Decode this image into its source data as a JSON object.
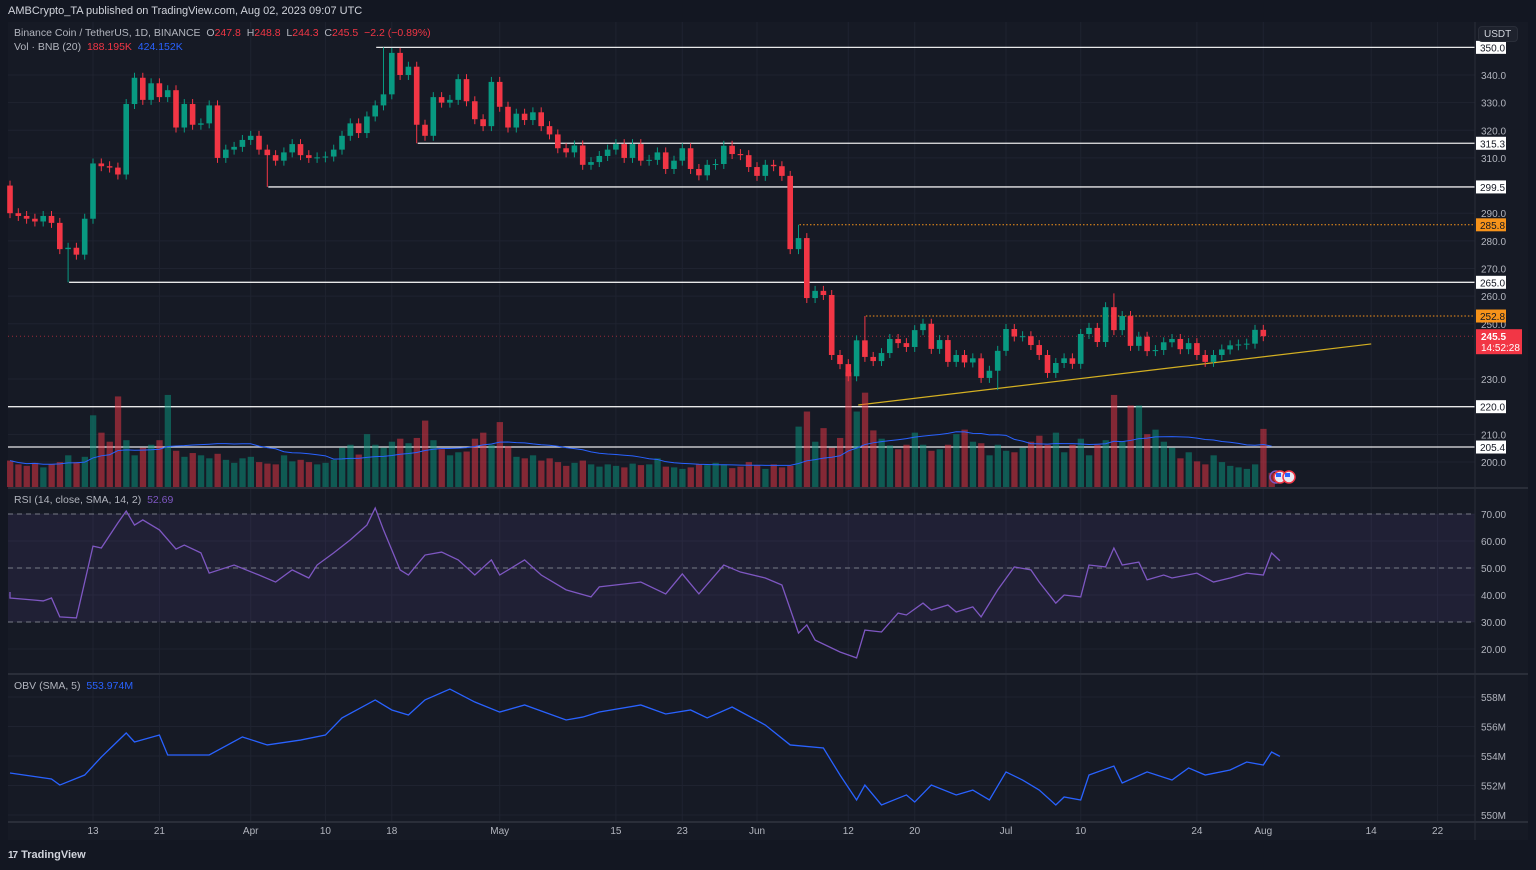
{
  "header": {
    "published": "AMBCrypto_TA published on TradingView.com, Aug 02, 2023 09:07 UTC",
    "symbol": "Binance Coin / TetherUS, 1D, BINANCE",
    "o_label": "O",
    "o": "247.8",
    "h_label": "H",
    "h": "248.8",
    "l_label": "L",
    "l": "244.3",
    "c_label": "C",
    "c": "245.5",
    "change": "−2.2 (−0.89%)",
    "vol_label": "Vol · BNB (20)",
    "vol": "188.195K",
    "vol_ma": "424.152K",
    "rsi_label": "RSI (14, close, SMA, 14, 2)",
    "rsi_value": "52.69",
    "obv_label": "OBV (SMA, 5)",
    "obv_value": "553.974M",
    "currency": "USDT"
  },
  "footer": {
    "brand": "TradingView",
    "brand_mark": "17"
  },
  "colors": {
    "up": "#089981",
    "down": "#f23645",
    "trend": "#d4b022",
    "orange": "#f7931a",
    "rsi": "#7e57c2",
    "obv": "#2962ff",
    "vol_ma": "#2962ff"
  },
  "chart_data": [
    {
      "type": "candlestick",
      "title": "Binance Coin / TetherUS, 1D, BINANCE",
      "first_day": "Mar 3 2023",
      "open0": 300,
      "closes": [
        290,
        289,
        288,
        287,
        289,
        286.5,
        277,
        277.5,
        275,
        288,
        308,
        307,
        306.5,
        304,
        329.5,
        339,
        331,
        337,
        332,
        334.5,
        321,
        329.5,
        322,
        322.5,
        329,
        310,
        313,
        314,
        316.5,
        318,
        313,
        311,
        309,
        312,
        315,
        311,
        310,
        310.2,
        310.5,
        313,
        318,
        322.5,
        319,
        325,
        329,
        333,
        348,
        340,
        343,
        322,
        318,
        332,
        330,
        331,
        338.5,
        330.5,
        324,
        321.5,
        337.5,
        328.5,
        321,
        326,
        323.7,
        326.5,
        321.5,
        318.5,
        313.5,
        312,
        314.5,
        307.5,
        308.5,
        310.7,
        313,
        315,
        310,
        315,
        309,
        309.3,
        312,
        306,
        309,
        313.5,
        306,
        303.7,
        307.5,
        307.8,
        314.4,
        311.4,
        311,
        306.7,
        303.5,
        307.5,
        307,
        303.5,
        277,
        281,
        259.3,
        261.9,
        260.4,
        238.7,
        235.4,
        231,
        244,
        238,
        236.5,
        239.4,
        244.5,
        243,
        241.6,
        247.7,
        250,
        240.9,
        244.1,
        236.2,
        238.7,
        236,
        237.5,
        230.4,
        233,
        240.2,
        248.1,
        245.4,
        245.5,
        242.3,
        238.7,
        232.2,
        235.8,
        237.5,
        235.5,
        246.3,
        248.5,
        243.4,
        256,
        247.7,
        252.8,
        242,
        245.3,
        240.1,
        240.5,
        243.3,
        244.5,
        240.8,
        243,
        238.7,
        236.2,
        238.7,
        240.7,
        242.2,
        242.5,
        242.8,
        247.8,
        245.5
      ],
      "wick_extremes": {
        "7": {
          "low": 265
        },
        "45": {
          "high": 350
        },
        "31": {
          "low": 299.5
        },
        "49": {
          "low": 315.3
        },
        "95": {
          "high": 285.8
        },
        "103": {
          "high": 252.8
        },
        "133": {
          "high": 261
        },
        "119": {
          "low": 226
        },
        "152": {
          "high": 248.8,
          "low": 244.3
        }
      },
      "volume_k": [
        350,
        300,
        280,
        320,
        260,
        300,
        330,
        420,
        330,
        400,
        950,
        720,
        600,
        1200,
        620,
        420,
        520,
        560,
        620,
        1220,
        480,
        400,
        450,
        420,
        380,
        440,
        360,
        320,
        380,
        400,
        330,
        310,
        300,
        420,
        340,
        360,
        330,
        300,
        320,
        360,
        520,
        560,
        430,
        700,
        560,
        520,
        600,
        640,
        580,
        650,
        880,
        620,
        500,
        420,
        460,
        470,
        640,
        720,
        560,
        860,
        540,
        400,
        380,
        420,
        350,
        380,
        330,
        280,
        320,
        350,
        300,
        270,
        300,
        280,
        260,
        310,
        290,
        300,
        380,
        270,
        260,
        240,
        260,
        300,
        290,
        320,
        300,
        250,
        270,
        330,
        290,
        240,
        300,
        260,
        280,
        800,
        1000,
        600,
        780,
        520,
        650,
        1520,
        1000,
        1250,
        750,
        640,
        550,
        500,
        560,
        720,
        560,
        480,
        500,
        560,
        700,
        760,
        600,
        580,
        420,
        560,
        480,
        460,
        520,
        600,
        680,
        560,
        720,
        460,
        560,
        640,
        420,
        560,
        620,
        1220,
        600,
        1080,
        1080,
        700,
        760,
        600,
        520,
        380,
        460,
        340,
        300,
        420,
        330,
        280,
        260,
        240,
        300,
        770,
        188.195
      ],
      "levels": [
        {
          "price": 350.0,
          "label": "350.0",
          "from_day": 44,
          "style": "solid",
          "color": "#ffffff"
        },
        {
          "price": 315.3,
          "label": "315.3",
          "from_day": 49,
          "style": "solid",
          "color": "#ffffff"
        },
        {
          "price": 299.5,
          "label": "299.5",
          "from_day": 31,
          "style": "solid",
          "color": "#ffffff"
        },
        {
          "price": 285.8,
          "label": "285.8",
          "from_day": 95,
          "style": "dotted",
          "color": "#f7931a"
        },
        {
          "price": 265.0,
          "label": "265.0",
          "from_day": 7,
          "style": "solid",
          "color": "#ffffff"
        },
        {
          "price": 252.8,
          "label": "252.8",
          "from_day": 103,
          "style": "dotted",
          "color": "#f7931a"
        },
        {
          "price": 220.0,
          "label": "220.0",
          "from_day": 0,
          "style": "solid",
          "color": "#ffffff"
        },
        {
          "price": 205.4,
          "label": "205.4",
          "from_day": 0,
          "style": "solid",
          "color": "#ffffff"
        }
      ],
      "trendline": {
        "from": [
          102.2,
          220.6
        ],
        "to": [
          164,
          242.7
        ]
      },
      "last_price": {
        "price": 245.5,
        "label": "245.5",
        "countdown": "14:52:28"
      },
      "y_ticks": [
        340,
        330,
        320,
        310,
        290,
        280,
        270,
        260,
        250,
        230,
        210,
        200
      ],
      "y_tick_labels": [
        "340.0",
        "330.0",
        "320.0",
        "310.0",
        "290.0",
        "280.0",
        "270.0",
        "260.0",
        "250.0",
        "230.0",
        "210.0",
        "200.0"
      ],
      "x_ticks": [
        {
          "day": 10,
          "label": "13"
        },
        {
          "day": 18,
          "label": "21"
        },
        {
          "day": 29,
          "label": "Apr"
        },
        {
          "day": 38,
          "label": "10"
        },
        {
          "day": 46,
          "label": "18"
        },
        {
          "day": 59,
          "label": "May"
        },
        {
          "day": 73,
          "label": "15"
        },
        {
          "day": 81,
          "label": "23"
        },
        {
          "day": 90,
          "label": "Jun"
        },
        {
          "day": 101,
          "label": "12"
        },
        {
          "day": 109,
          "label": "20"
        },
        {
          "day": 120,
          "label": "Jul"
        },
        {
          "day": 129,
          "label": "10"
        },
        {
          "day": 143,
          "label": "24"
        },
        {
          "day": 151,
          "label": "Aug"
        },
        {
          "day": 164,
          "label": "14"
        },
        {
          "day": 172,
          "label": "22"
        }
      ]
    },
    {
      "type": "line",
      "title": "RSI (14, close, SMA, 14, 2)",
      "ylim": [
        10,
        80
      ],
      "bands": [
        70,
        50,
        30
      ],
      "y_ticks": [
        70,
        60,
        50,
        40,
        30,
        20
      ],
      "y_tick_labels": [
        "70.00",
        "60.00",
        "50.00",
        "40.00",
        "30.00",
        "20.00"
      ],
      "points": [
        [
          0,
          41.1
        ],
        [
          0,
          38.9
        ],
        [
          3,
          38.1
        ],
        [
          4,
          37.8
        ],
        [
          5,
          38.9
        ],
        [
          6,
          31.9
        ],
        [
          8,
          31.5
        ],
        [
          10,
          58.1
        ],
        [
          11,
          57.4
        ],
        [
          13,
          66.7
        ],
        [
          14,
          71.1
        ],
        [
          15,
          65.9
        ],
        [
          16,
          67.8
        ],
        [
          18,
          64.1
        ],
        [
          20,
          57.0
        ],
        [
          21,
          58.5
        ],
        [
          23,
          55.6
        ],
        [
          24,
          48.1
        ],
        [
          27,
          51.1
        ],
        [
          30,
          47.4
        ],
        [
          32,
          44.8
        ],
        [
          34,
          49.3
        ],
        [
          36,
          46.3
        ],
        [
          37,
          51.1
        ],
        [
          39,
          55.6
        ],
        [
          41,
          60.4
        ],
        [
          43,
          65.9
        ],
        [
          44,
          72.2
        ],
        [
          45,
          64.1
        ],
        [
          47,
          49.3
        ],
        [
          48,
          47.4
        ],
        [
          50,
          54.8
        ],
        [
          52,
          55.9
        ],
        [
          54,
          53.0
        ],
        [
          56,
          47.4
        ],
        [
          58,
          53.0
        ],
        [
          59,
          47.4
        ],
        [
          62,
          53.0
        ],
        [
          64,
          47.4
        ],
        [
          67,
          41.9
        ],
        [
          70,
          39.3
        ],
        [
          71,
          43.0
        ],
        [
          76,
          44.8
        ],
        [
          79,
          40.4
        ],
        [
          81,
          47.8
        ],
        [
          83,
          40.4
        ],
        [
          86,
          51.1
        ],
        [
          88,
          48.5
        ],
        [
          91,
          46.3
        ],
        [
          93,
          43.7
        ],
        [
          95,
          25.9
        ],
        [
          96,
          28.9
        ],
        [
          97,
          23.3
        ],
        [
          100,
          18.9
        ],
        [
          102,
          16.7
        ],
        [
          103,
          27.0
        ],
        [
          105,
          26.3
        ],
        [
          107,
          33.3
        ],
        [
          108,
          32.6
        ],
        [
          110,
          37.0
        ],
        [
          111,
          34.4
        ],
        [
          113,
          36.3
        ],
        [
          114,
          33.7
        ],
        [
          116,
          35.6
        ],
        [
          117,
          31.9
        ],
        [
          119,
          41.9
        ],
        [
          121,
          50.4
        ],
        [
          123,
          49.3
        ],
        [
          124,
          44.8
        ],
        [
          126,
          37.0
        ],
        [
          127,
          40.0
        ],
        [
          129,
          39.3
        ],
        [
          130,
          51.1
        ],
        [
          132,
          50.4
        ],
        [
          133,
          57.4
        ],
        [
          134,
          51.1
        ],
        [
          136,
          52.2
        ],
        [
          137,
          45.6
        ],
        [
          139,
          47.4
        ],
        [
          140,
          46.3
        ],
        [
          143,
          48.1
        ],
        [
          145,
          44.8
        ],
        [
          147,
          46.3
        ],
        [
          149,
          48.1
        ],
        [
          151,
          47.4
        ],
        [
          152,
          55.6
        ],
        [
          153,
          52.69
        ]
      ]
    },
    {
      "type": "line",
      "title": "OBV (SMA, 5)",
      "unit": "M",
      "y_ticks": [
        558,
        556,
        554,
        552,
        550
      ],
      "y_tick_labels": [
        "558M",
        "556M",
        "554M",
        "552M",
        "550M"
      ],
      "points": [
        [
          0,
          552.85
        ],
        [
          5,
          552.44
        ],
        [
          6,
          552.03
        ],
        [
          9,
          552.71
        ],
        [
          11,
          553.93
        ],
        [
          14,
          555.56
        ],
        [
          15,
          554.95
        ],
        [
          18,
          555.42
        ],
        [
          19,
          554.07
        ],
        [
          24,
          554.07
        ],
        [
          28,
          555.29
        ],
        [
          31,
          554.75
        ],
        [
          35,
          555.08
        ],
        [
          38,
          555.42
        ],
        [
          40,
          556.58
        ],
        [
          44,
          557.8
        ],
        [
          46,
          557.12
        ],
        [
          48,
          556.78
        ],
        [
          50,
          557.8
        ],
        [
          53,
          558.54
        ],
        [
          56,
          557.66
        ],
        [
          59,
          556.98
        ],
        [
          62,
          557.46
        ],
        [
          67,
          556.44
        ],
        [
          69,
          556.64
        ],
        [
          71,
          556.98
        ],
        [
          76,
          557.46
        ],
        [
          79,
          556.85
        ],
        [
          82,
          557.12
        ],
        [
          84,
          556.58
        ],
        [
          87,
          557.32
        ],
        [
          91,
          556.1
        ],
        [
          94,
          554.75
        ],
        [
          98,
          554.54
        ],
        [
          100,
          552.71
        ],
        [
          102,
          551.02
        ],
        [
          103,
          552.03
        ],
        [
          105,
          550.68
        ],
        [
          108,
          551.36
        ],
        [
          109,
          550.88
        ],
        [
          111,
          552.03
        ],
        [
          114,
          551.36
        ],
        [
          116,
          551.69
        ],
        [
          118,
          551.02
        ],
        [
          120,
          552.92
        ],
        [
          122,
          552.37
        ],
        [
          124,
          551.69
        ],
        [
          126,
          550.68
        ],
        [
          127,
          551.22
        ],
        [
          129,
          551.02
        ],
        [
          130,
          552.71
        ],
        [
          133,
          553.32
        ],
        [
          134,
          552.17
        ],
        [
          137,
          552.92
        ],
        [
          140,
          552.37
        ],
        [
          142,
          553.19
        ],
        [
          144,
          552.71
        ],
        [
          147,
          553.05
        ],
        [
          149,
          553.59
        ],
        [
          151,
          553.39
        ],
        [
          152,
          554.27
        ],
        [
          153,
          553.974
        ]
      ]
    }
  ]
}
